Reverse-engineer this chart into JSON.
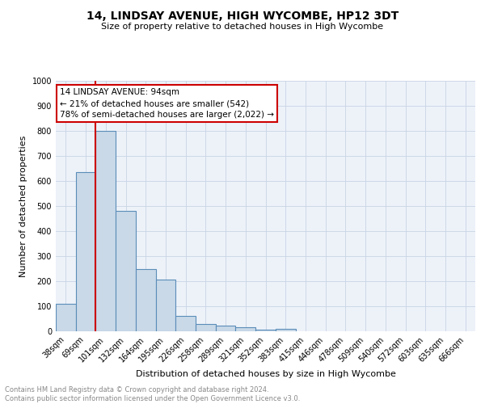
{
  "title": "14, LINDSAY AVENUE, HIGH WYCOMBE, HP12 3DT",
  "subtitle": "Size of property relative to detached houses in High Wycombe",
  "xlabel": "Distribution of detached houses by size in High Wycombe",
  "ylabel": "Number of detached properties",
  "footnote": "Contains HM Land Registry data © Crown copyright and database right 2024.\nContains public sector information licensed under the Open Government Licence v3.0.",
  "bin_labels": [
    "38sqm",
    "69sqm",
    "101sqm",
    "132sqm",
    "164sqm",
    "195sqm",
    "226sqm",
    "258sqm",
    "289sqm",
    "321sqm",
    "352sqm",
    "383sqm",
    "415sqm",
    "446sqm",
    "478sqm",
    "509sqm",
    "540sqm",
    "572sqm",
    "603sqm",
    "635sqm",
    "666sqm"
  ],
  "bar_values": [
    110,
    635,
    800,
    480,
    250,
    205,
    60,
    28,
    22,
    15,
    8,
    10,
    0,
    0,
    0,
    0,
    0,
    0,
    0,
    0,
    0
  ],
  "bar_color": "#c9d9e8",
  "bar_edge_color": "#5b8db8",
  "annotation_text": "14 LINDSAY AVENUE: 94sqm\n← 21% of detached houses are smaller (542)\n78% of semi-detached houses are larger (2,022) →",
  "annotation_box_color": "#ffffff",
  "annotation_box_edge_color": "#cc0000",
  "vline_color": "#cc0000",
  "vline_x": 1.5,
  "ylim": [
    0,
    1000
  ],
  "yticks": [
    0,
    100,
    200,
    300,
    400,
    500,
    600,
    700,
    800,
    900,
    1000
  ],
  "grid_color": "#c8d4e4",
  "bg_color": "#edf2f9",
  "title_fontsize": 10,
  "subtitle_fontsize": 8,
  "footnote_fontsize": 6,
  "xlabel_fontsize": 8,
  "ylabel_fontsize": 8,
  "tick_fontsize": 7
}
